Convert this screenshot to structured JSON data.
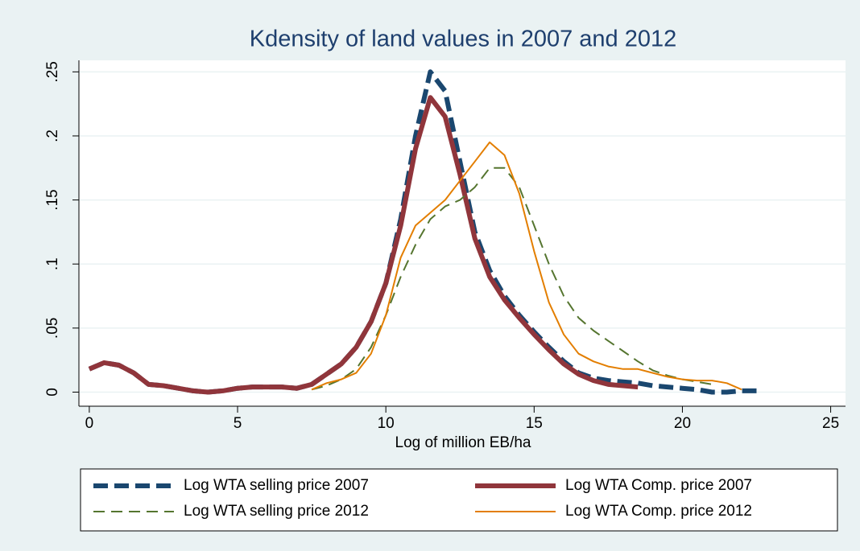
{
  "chart_data": {
    "type": "line",
    "title": "Kdensity of land values in 2007 and 2012",
    "x_label": "Log of million EB/ha",
    "x": [
      0,
      0.5,
      1,
      1.5,
      2,
      2.5,
      3,
      3.5,
      4,
      4.5,
      5,
      5.5,
      6,
      6.5,
      7,
      7.5,
      8,
      8.5,
      9,
      9.5,
      10,
      10.5,
      11,
      11.5,
      12,
      12.5,
      13,
      13.5,
      14,
      14.5,
      15,
      15.5,
      16,
      16.5,
      17,
      17.5,
      18,
      18.5,
      19,
      19.5,
      20,
      20.5,
      21,
      21.5,
      22,
      22.5
    ],
    "series": [
      {
        "name": "Log WTA selling price 2007",
        "color": "#1a476f",
        "values": [
          0.018,
          0.023,
          0.021,
          0.015,
          0.006,
          0.005,
          0.003,
          0.001,
          0.0,
          0.001,
          0.003,
          0.004,
          0.004,
          0.004,
          0.003,
          0.006,
          0.014,
          0.022,
          0.035,
          0.055,
          0.085,
          0.135,
          0.2,
          0.25,
          0.235,
          0.18,
          0.125,
          0.095,
          0.075,
          0.06,
          0.047,
          0.035,
          0.024,
          0.015,
          0.011,
          0.009,
          0.008,
          0.007,
          0.005,
          0.004,
          0.003,
          0.002,
          0.0,
          0.0,
          0.001,
          0.001
        ]
      },
      {
        "name": "Log WTA Comp. price 2007",
        "color": "#90353b",
        "values": [
          0.018,
          0.023,
          0.021,
          0.015,
          0.006,
          0.005,
          0.003,
          0.001,
          0.0,
          0.001,
          0.003,
          0.004,
          0.004,
          0.004,
          0.003,
          0.006,
          0.014,
          0.022,
          0.035,
          0.055,
          0.085,
          0.13,
          0.19,
          0.23,
          0.215,
          0.17,
          0.12,
          0.09,
          0.072,
          0.058,
          0.045,
          0.033,
          0.022,
          0.014,
          0.009,
          0.006,
          0.005,
          0.004,
          null,
          null,
          null,
          null,
          null,
          null,
          null,
          null
        ]
      },
      {
        "name": "Log WTA selling price 2012",
        "color": "#55752f",
        "values": [
          null,
          null,
          null,
          null,
          null,
          null,
          null,
          null,
          null,
          null,
          null,
          null,
          null,
          null,
          null,
          0.002,
          0.005,
          0.01,
          0.018,
          0.035,
          0.06,
          0.09,
          0.115,
          0.135,
          0.145,
          0.15,
          0.16,
          0.175,
          0.175,
          0.16,
          0.13,
          0.1,
          0.075,
          0.058,
          0.048,
          0.04,
          0.032,
          0.024,
          0.017,
          0.013,
          0.01,
          0.008,
          0.006,
          null,
          null,
          null
        ]
      },
      {
        "name": "Log WTA Comp. price 2012",
        "color": "#e37e00",
        "values": [
          null,
          null,
          null,
          null,
          null,
          null,
          null,
          null,
          null,
          null,
          null,
          null,
          null,
          null,
          null,
          0.002,
          0.007,
          0.01,
          0.015,
          0.03,
          0.06,
          0.105,
          0.13,
          0.14,
          0.15,
          0.165,
          0.18,
          0.195,
          0.185,
          0.155,
          0.11,
          0.07,
          0.045,
          0.03,
          0.024,
          0.02,
          0.018,
          0.018,
          0.015,
          0.012,
          0.01,
          0.009,
          0.009,
          0.007,
          0.002,
          null
        ]
      }
    ],
    "xlim": [
      -0.35,
      25.5
    ],
    "xticks": [
      0,
      5,
      10,
      15,
      20,
      25
    ],
    "ylim": [
      -0.011,
      0.259
    ],
    "yticks": [
      0,
      {
        "value": 0.05,
        "label": ".05"
      },
      {
        "value": 0.1,
        "label": ".1"
      },
      {
        "value": 0.15,
        "label": ".15"
      },
      {
        "value": 0.2,
        "label": ".2"
      },
      {
        "value": 0.25,
        "label": ".25"
      }
    ],
    "grid": true,
    "legend": "bottom"
  }
}
